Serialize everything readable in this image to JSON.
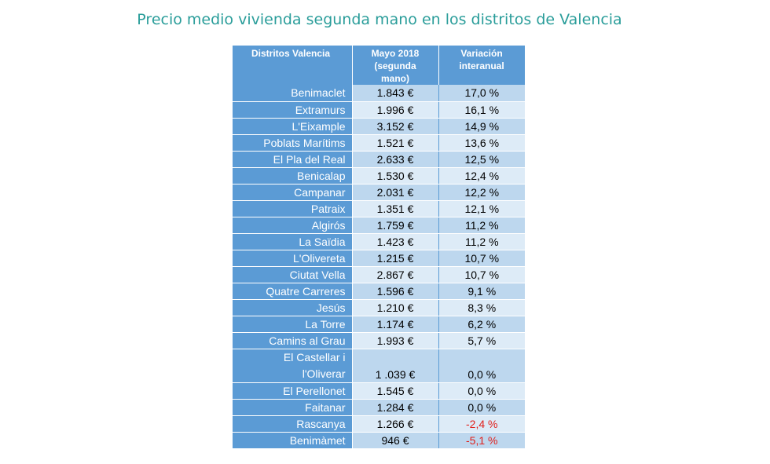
{
  "title": "Precio medio vivienda segunda mano en los distritos de Valencia",
  "table": {
    "headers": {
      "district": "Distritos Valencia",
      "price_line1": "Mayo 2018",
      "price_line2": "(segunda",
      "price_line3": "mano)",
      "variation_line1": "Variación",
      "variation_line2": "interanual"
    },
    "rows": [
      {
        "district": "Benimaclet",
        "price": "1.843 €",
        "variation": "17,0 %"
      },
      {
        "district": "Extramurs",
        "price": "1.996 €",
        "variation": "16,1 %"
      },
      {
        "district": "L'Eixample",
        "price": "3.152 €",
        "variation": "14,9 %"
      },
      {
        "district": "Poblats Marítims",
        "price": "1.521 €",
        "variation": "13,6 %"
      },
      {
        "district": "El Pla del Real",
        "price": "2.633 €",
        "variation": "12,5 %"
      },
      {
        "district": "Benicalap",
        "price": "1.530 €",
        "variation": "12,4 %"
      },
      {
        "district": "Campanar",
        "price": "2.031 €",
        "variation": "12,2 %"
      },
      {
        "district": "Patraix",
        "price": "1.351 €",
        "variation": "12,1 %"
      },
      {
        "district": "Algirós",
        "price": "1.759 €",
        "variation": "11,2 %"
      },
      {
        "district": "La Saïdia",
        "price": "1.423 €",
        "variation": "11,2 %"
      },
      {
        "district": "L'Olivereta",
        "price": "1.215 €",
        "variation": "10,7 %"
      },
      {
        "district": "Ciutat Vella",
        "price": "2.867 €",
        "variation": "10,7 %"
      },
      {
        "district": "Quatre Carreres",
        "price": "1.596 €",
        "variation": "9,1 %"
      },
      {
        "district": "Jesús",
        "price": "1.210 €",
        "variation": "8,3 %"
      },
      {
        "district": "La Torre",
        "price": "1.174 €",
        "variation": "6,2 %"
      },
      {
        "district": "Camins al Grau",
        "price": "1.993 €",
        "variation": "5,7 %"
      },
      {
        "district_line1": "El Castellar i",
        "district_line2": "l'Oliverar",
        "price": "1 .039 €",
        "variation": "0,0 %"
      },
      {
        "district": "El Perellonet",
        "price": "1.545 €",
        "variation": "0,0 %"
      },
      {
        "district": "Faitanar",
        "price": "1.284 €",
        "variation": "0,0 %"
      },
      {
        "district": "Rascanya",
        "price": "1.266 €",
        "variation": "-2,4 %"
      },
      {
        "district": "Benimàmet",
        "price": "946 €",
        "variation": "-5,1 %"
      }
    ]
  },
  "colors": {
    "title": "#2a9d9a",
    "header_bg": "#5b9bd5",
    "row_dark": "#bdd7ee",
    "row_light": "#ddebf7",
    "negative": "#e0201c"
  }
}
